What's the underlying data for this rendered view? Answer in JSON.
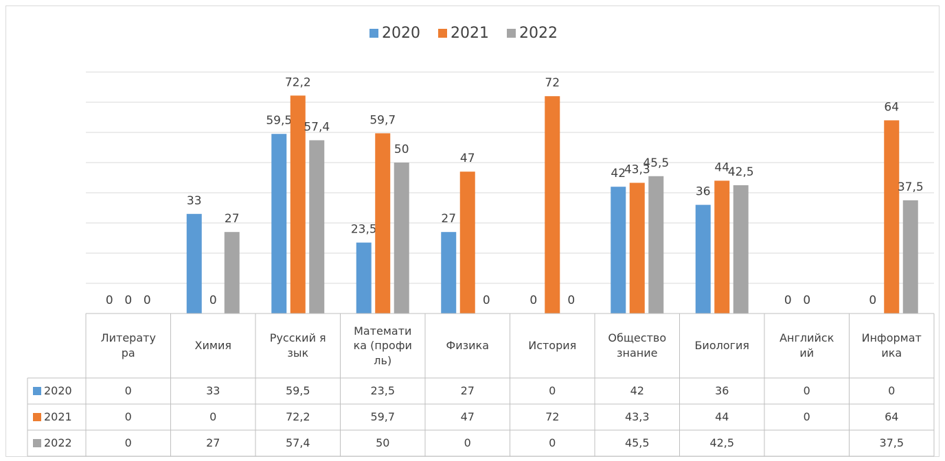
{
  "chart_data": {
    "type": "bar",
    "categories": [
      "Литература",
      "Химия",
      "Русский язык",
      "Математика (профиль)",
      "Физика",
      "История",
      "Обществознание",
      "Биология",
      "Английский",
      "Информатика"
    ],
    "series": [
      {
        "name": "2020",
        "color": "#5b9bd5",
        "values": [
          0,
          33,
          59.5,
          23.5,
          27,
          0,
          42,
          36,
          0,
          0
        ],
        "value_labels": [
          "0",
          "33",
          "59,5",
          "23,5",
          "27",
          "0",
          "42",
          "36",
          "0",
          "0"
        ]
      },
      {
        "name": "2021",
        "color": "#ed7d31",
        "values": [
          0,
          0,
          72.2,
          59.7,
          47,
          72,
          43.3,
          44,
          0,
          64
        ],
        "value_labels": [
          "0",
          "0",
          "72,2",
          "59,7",
          "47",
          "72",
          "43,3",
          "44",
          "0",
          "64"
        ]
      },
      {
        "name": "2022",
        "color": "#a5a5a5",
        "values": [
          0,
          27,
          57.4,
          50,
          0,
          0,
          45.5,
          42.5,
          null,
          37.5
        ],
        "value_labels": [
          "0",
          "27",
          "57,4",
          "50",
          "0",
          "0",
          "45,5",
          "42,5",
          null,
          "37,5"
        ]
      }
    ],
    "ylim": [
      0,
      80
    ],
    "yticks": [
      0,
      10,
      20,
      30,
      40,
      50,
      60,
      70,
      80
    ],
    "grid": true,
    "legend": "top",
    "data_table": true
  }
}
